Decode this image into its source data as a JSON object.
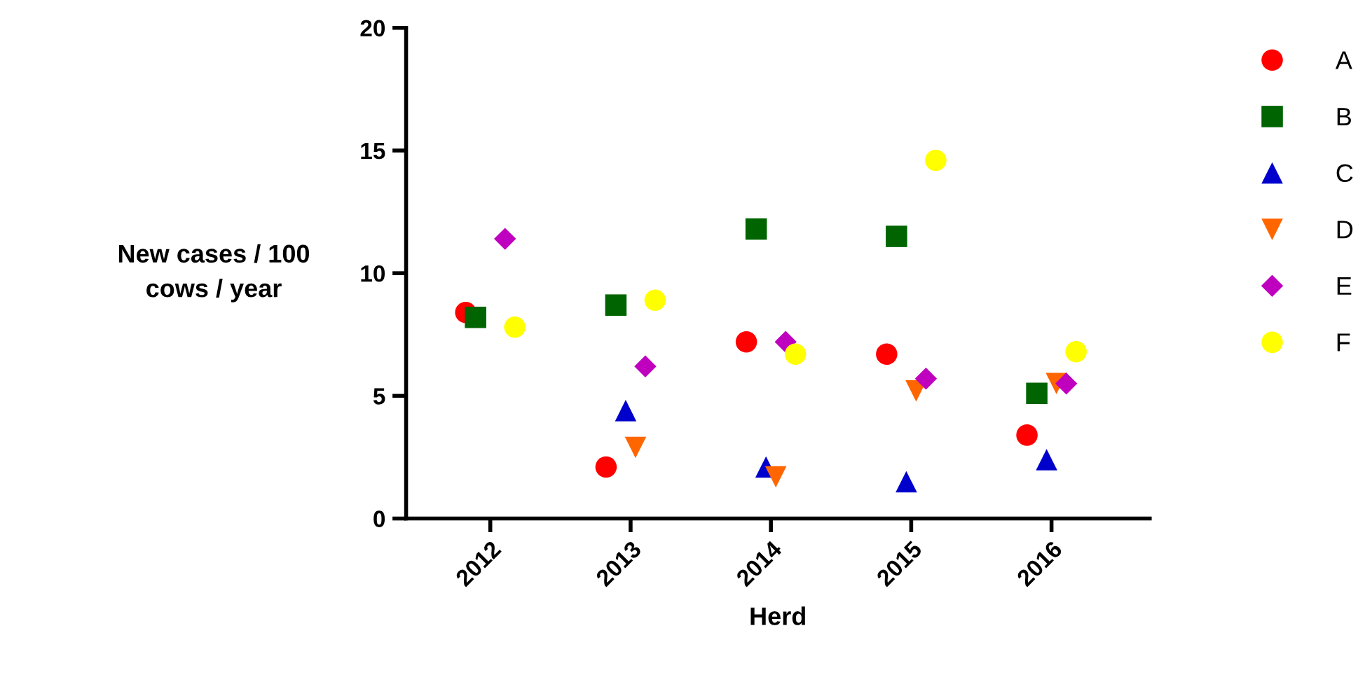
{
  "chart_data": {
    "type": "scatter",
    "xlabel": "Herd",
    "ylabel": "New cases / 100\ncows / year",
    "categories": [
      "2012",
      "2013",
      "2014",
      "2015",
      "2016"
    ],
    "ylim": [
      0,
      20
    ],
    "yticks": [
      0,
      5,
      10,
      15,
      20
    ],
    "grid": false,
    "legend": "top right",
    "series": [
      {
        "name": "A",
        "color": "#ff0000",
        "marker": "circle",
        "values": [
          8.4,
          2.1,
          7.2,
          6.7,
          3.4
        ]
      },
      {
        "name": "B",
        "color": "#006400",
        "marker": "square",
        "values": [
          8.2,
          8.7,
          11.8,
          11.5,
          5.1
        ]
      },
      {
        "name": "C",
        "color": "#0000cc",
        "marker": "triangle",
        "values": [
          null,
          4.4,
          2.1,
          1.5,
          2.4
        ]
      },
      {
        "name": "D",
        "color": "#ff6600",
        "marker": "triangle_down",
        "values": [
          null,
          2.9,
          1.7,
          5.2,
          5.5
        ]
      },
      {
        "name": "E",
        "color": "#bf00bf",
        "marker": "diamond",
        "values": [
          11.4,
          6.2,
          7.2,
          5.7,
          5.5
        ]
      },
      {
        "name": "F",
        "color": "#ffff00",
        "marker": "circle",
        "values": [
          7.8,
          8.9,
          6.7,
          14.6,
          6.8
        ]
      }
    ]
  }
}
